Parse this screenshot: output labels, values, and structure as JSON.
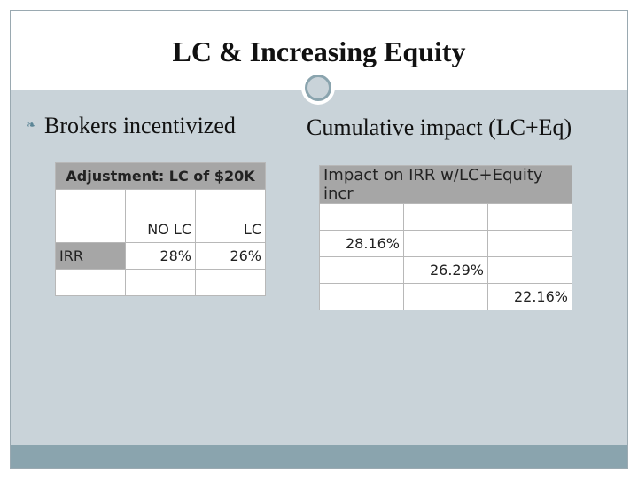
{
  "slide": {
    "title": "LC & Increasing Equity",
    "left_bullet": "Brokers incentivized",
    "right_heading": "Cumulative impact (LC+Eq)"
  },
  "table1": {
    "title": "Adjustment: LC of $20K",
    "col_no_lc": "NO LC",
    "col_lc": "LC",
    "row_label": "IRR",
    "irr_no_lc": "28%",
    "irr_lc": "26%"
  },
  "table2": {
    "title": "Impact on IRR w/LC+Equity incr",
    "v1": "28.16%",
    "v2": "26.29%",
    "v3": "22.16%"
  },
  "colors": {
    "accent": "#8aa4ae",
    "background": "#c9d3d9",
    "header_fill": "#a6a6a6"
  },
  "icons": {
    "bullet": "bullet-glyph-icon",
    "ornament": "circle-ring-icon"
  }
}
